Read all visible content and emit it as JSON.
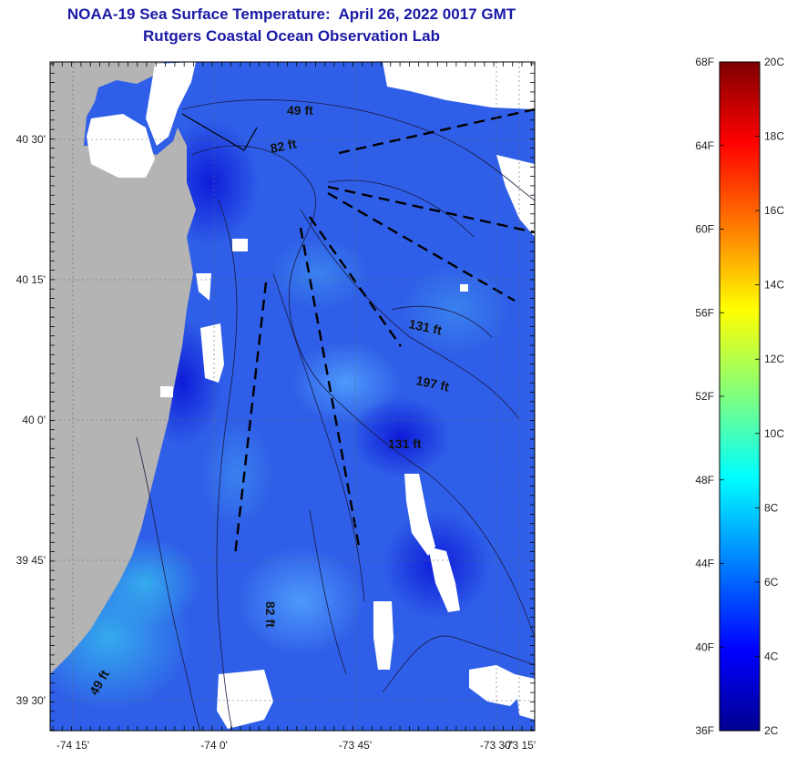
{
  "header": {
    "title_line1": "NOAA-19 Sea Surface Temperature:  April 26, 2022 0017 GMT",
    "title_line2": "Rutgers Coastal Ocean Observation Lab"
  },
  "map": {
    "lat_ticks": [
      "40 30'",
      "40 15'",
      "40 0'",
      "39 45'",
      "39 30'"
    ],
    "lon_ticks": [
      "-74 15'",
      "-74 0'",
      "-73 45'",
      "-73 30'",
      "-73 15'"
    ],
    "depth_labels": [
      "49 ft",
      "82 ft",
      "131 ft",
      "197 ft",
      "131 ft",
      "82 ft",
      "49 ft"
    ]
  },
  "colorbar": {
    "fahrenheit_labels": [
      "68F",
      "64F",
      "60F",
      "56F",
      "52F",
      "48F",
      "44F",
      "40F",
      "36F"
    ],
    "celsius_labels": [
      "20C",
      "18C",
      "16C",
      "14C",
      "12C",
      "10C",
      "8C",
      "6C",
      "4C",
      "2C"
    ],
    "colors": [
      "#7f0000",
      "#ff0000",
      "#ff7f00",
      "#ffff00",
      "#7fff7f",
      "#00ffff",
      "#007fff",
      "#0000ff",
      "#00008f"
    ]
  },
  "colors": {
    "title": "#1a1aa6",
    "land": "#b4b4b4",
    "ocean_main": "#2f5fe8"
  }
}
